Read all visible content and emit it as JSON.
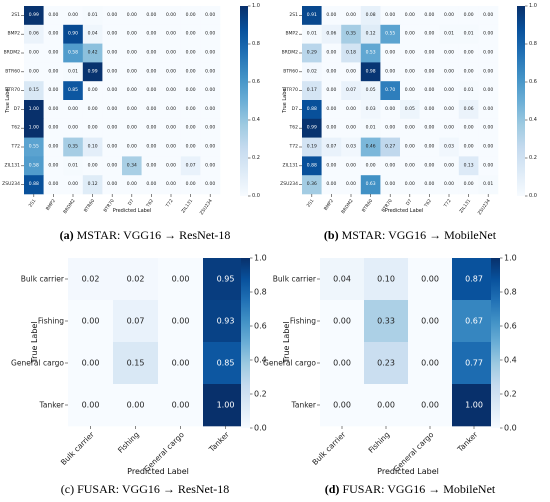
{
  "captions": [
    {
      "tag": "(a)",
      "text": "MSTAR: VGG16 → ResNet-18"
    },
    {
      "tag": "(b)",
      "text": "MSTAR: VGG16 → MobileNet"
    },
    {
      "tag": "(c)",
      "text": "FUSAR: VGG16 → ResNet-18"
    },
    {
      "tag": "(d)",
      "text": "FUSAR: VGG16 → MobileNet"
    }
  ],
  "colormap": {
    "low": "#f7fbff",
    "mid": "#6baed6",
    "high": "#08306b"
  },
  "chart_data": [
    {
      "type": "heatmap",
      "xlabel": "Predicted Label",
      "ylabel": "True Label",
      "x_categories": [
        "2S1",
        "BMP2",
        "BRDM2",
        "BTR60",
        "BTR70",
        "D7",
        "T62",
        "T72",
        "ZIL131",
        "ZSU234"
      ],
      "y_categories": [
        "2S1",
        "BMP2",
        "BRDM2",
        "BTR60",
        "BTR70",
        "D7",
        "T62",
        "T72",
        "ZIL131",
        "ZSU234"
      ],
      "values": [
        [
          0.99,
          0.0,
          0.0,
          0.01,
          0.0,
          0.0,
          0.0,
          0.0,
          0.0,
          0.0
        ],
        [
          0.06,
          0.0,
          0.9,
          0.04,
          0.0,
          0.0,
          0.0,
          0.0,
          0.0,
          0.0
        ],
        [
          0.0,
          0.0,
          0.58,
          0.42,
          0.0,
          0.0,
          0.0,
          0.0,
          0.0,
          0.0
        ],
        [
          0.0,
          0.0,
          0.01,
          0.99,
          0.0,
          0.0,
          0.0,
          0.0,
          0.0,
          0.0
        ],
        [
          0.15,
          0.0,
          0.85,
          0.0,
          0.0,
          0.0,
          0.0,
          0.0,
          0.0,
          0.0
        ],
        [
          1.0,
          0.0,
          0.0,
          0.0,
          0.0,
          0.0,
          0.0,
          0.0,
          0.0,
          0.0
        ],
        [
          1.0,
          0.0,
          0.0,
          0.0,
          0.0,
          0.0,
          0.0,
          0.0,
          0.0,
          0.0
        ],
        [
          0.55,
          0.0,
          0.35,
          0.1,
          0.0,
          0.0,
          0.0,
          0.0,
          0.0,
          0.0
        ],
        [
          0.58,
          0.0,
          0.01,
          0.0,
          0.0,
          0.34,
          0.0,
          0.0,
          0.07,
          0.0
        ],
        [
          0.88,
          0.0,
          0.0,
          0.12,
          0.0,
          0.0,
          0.0,
          0.0,
          0.0,
          0.0
        ]
      ],
      "colorbar": {
        "range": [
          0,
          1
        ],
        "ticks": [
          "0.0",
          "0.2",
          "0.4",
          "0.6",
          "0.8",
          "1.0"
        ]
      }
    },
    {
      "type": "heatmap",
      "xlabel": "Predicted Label",
      "ylabel": "True Label",
      "x_categories": [
        "2S1",
        "BMP2",
        "BRDM2",
        "BTR60",
        "BTR70",
        "D7",
        "T62",
        "T72",
        "ZIL131",
        "ZSU234"
      ],
      "y_categories": [
        "2S1",
        "BMP2",
        "BRDM2",
        "BTR60",
        "BTR70",
        "D7",
        "T62",
        "T72",
        "ZIL131",
        "ZSU234"
      ],
      "values": [
        [
          0.91,
          0.0,
          0.0,
          0.08,
          0.0,
          0.0,
          0.0,
          0.0,
          0.0,
          0.0
        ],
        [
          0.01,
          0.06,
          0.35,
          0.12,
          0.55,
          0.0,
          0.0,
          0.01,
          0.01,
          0.0
        ],
        [
          0.29,
          0.0,
          0.18,
          0.53,
          0.0,
          0.0,
          0.0,
          0.0,
          0.0,
          0.0
        ],
        [
          0.02,
          0.0,
          0.0,
          0.98,
          0.0,
          0.0,
          0.0,
          0.0,
          0.0,
          0.0
        ],
        [
          0.17,
          0.0,
          0.07,
          0.05,
          0.7,
          0.0,
          0.0,
          0.0,
          0.01,
          0.0
        ],
        [
          0.88,
          0.0,
          0.0,
          0.03,
          0.0,
          0.05,
          0.0,
          0.0,
          0.06,
          0.0
        ],
        [
          0.99,
          0.0,
          0.0,
          0.01,
          0.0,
          0.0,
          0.0,
          0.0,
          0.0,
          0.0
        ],
        [
          0.19,
          0.07,
          0.03,
          0.46,
          0.27,
          0.0,
          0.0,
          0.03,
          0.0,
          0.0
        ],
        [
          0.88,
          0.0,
          0.0,
          0.0,
          0.0,
          0.0,
          0.0,
          0.0,
          0.13,
          0.0
        ],
        [
          0.36,
          0.0,
          0.0,
          0.63,
          0.0,
          0.0,
          0.0,
          0.0,
          0.0,
          0.01
        ]
      ],
      "colorbar": {
        "range": [
          0,
          1
        ],
        "ticks": [
          "0.0",
          "0.2",
          "0.4",
          "0.6",
          "0.8",
          "1.0"
        ]
      }
    },
    {
      "type": "heatmap",
      "xlabel": "Predicted Label",
      "ylabel": "True Label",
      "x_categories": [
        "Bulk carrier",
        "Fishing",
        "General cargo",
        "Tanker"
      ],
      "y_categories": [
        "Bulk carrier",
        "Fishing",
        "General cargo",
        "Tanker"
      ],
      "values": [
        [
          0.02,
          0.02,
          0.0,
          0.95
        ],
        [
          0.0,
          0.07,
          0.0,
          0.93
        ],
        [
          0.0,
          0.15,
          0.0,
          0.85
        ],
        [
          0.0,
          0.0,
          0.0,
          1.0
        ]
      ],
      "colorbar": {
        "range": [
          0,
          1
        ],
        "ticks": [
          "0.0",
          "0.2",
          "0.4",
          "0.6",
          "0.8",
          "1.0"
        ]
      }
    },
    {
      "type": "heatmap",
      "xlabel": "Predicted Label",
      "ylabel": "True Label",
      "x_categories": [
        "Bulk carrier",
        "Fishing",
        "General cargo",
        "Tanker"
      ],
      "y_categories": [
        "Bulk carrier",
        "Fishing",
        "General cargo",
        "Tanker"
      ],
      "values": [
        [
          0.04,
          0.1,
          0.0,
          0.87
        ],
        [
          0.0,
          0.33,
          0.0,
          0.67
        ],
        [
          0.0,
          0.23,
          0.0,
          0.77
        ],
        [
          0.0,
          0.0,
          0.0,
          1.0
        ]
      ],
      "colorbar": {
        "range": [
          0,
          1
        ],
        "ticks": [
          "0.0",
          "0.2",
          "0.4",
          "0.6",
          "0.8",
          "1.0"
        ]
      }
    }
  ]
}
